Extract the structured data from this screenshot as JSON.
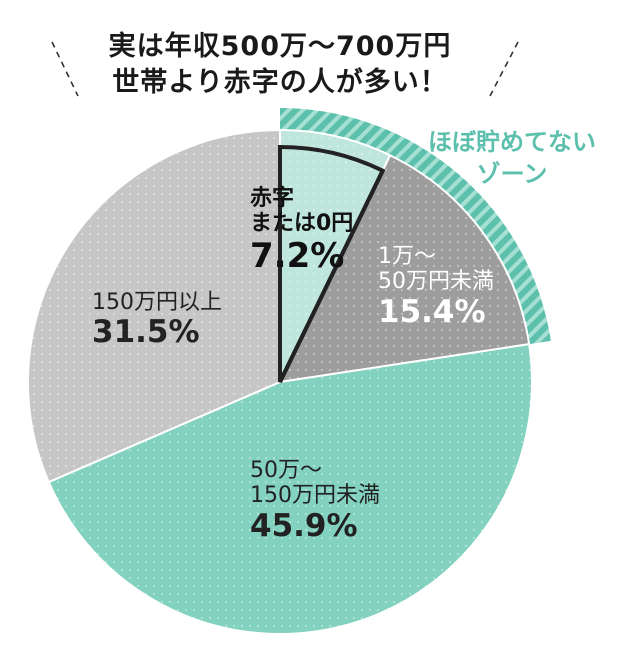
{
  "title": [
    "実は年収500万～700万円",
    "世帯より赤字の人が多い！"
  ],
  "zone_label": [
    "ほぼ貯めてない",
    "ゾーン"
  ],
  "colors": {
    "teal": "#82d2bf",
    "teal_dark": "#5cc0ad",
    "light_teal": "#bfe6dc",
    "dark_gray": "#9d9d9d",
    "light_gray": "#c6c6c6",
    "text": "#1a1a1a"
  },
  "chart_data": {
    "type": "pie",
    "categories": [
      "赤字または0円",
      "1万～50万円未満",
      "50万～150万円未満",
      "150万円以上"
    ],
    "values": [
      7.2,
      15.4,
      45.9,
      31.5
    ],
    "labels": [
      {
        "lines": [
          "赤字",
          "または0円"
        ],
        "value": "7.2%"
      },
      {
        "lines": [
          "1万～",
          "50万円未満"
        ],
        "value": "15.4%"
      },
      {
        "lines": [
          "50万～",
          "150万円未満"
        ],
        "value": "45.9%"
      },
      {
        "lines": [
          "150万円以上"
        ],
        "value": "31.5%"
      }
    ],
    "start": "12 o'clock",
    "direction": "clockwise",
    "highlight": {
      "label": "ほぼ貯めてないゾーン",
      "slices": [
        0,
        1
      ]
    }
  }
}
